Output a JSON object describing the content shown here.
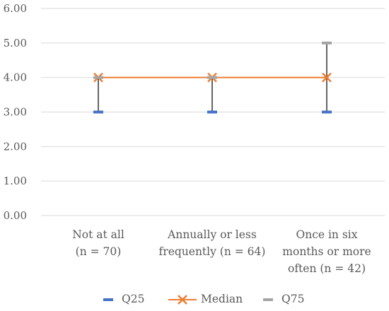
{
  "chart_data": {
    "type": "line",
    "title": "",
    "xlabel": "",
    "ylabel": "",
    "ylim": [
      0,
      6
    ],
    "yticks": [
      "0.00",
      "1.00",
      "2.00",
      "3.00",
      "4.00",
      "5.00",
      "6.00"
    ],
    "grid": true,
    "legend_position": "bottom",
    "categories": [
      [
        "Not at all",
        "(n = 70)"
      ],
      [
        "Annually or less",
        "frequently (n = 64)"
      ],
      [
        "Once in six",
        "months or more",
        "often (n = 42)"
      ]
    ],
    "series": [
      {
        "name": "Q25",
        "values": [
          3,
          3,
          3
        ],
        "marker": "dash",
        "line": false
      },
      {
        "name": "Median",
        "values": [
          4,
          4,
          4
        ],
        "marker": "x",
        "line": true
      },
      {
        "name": "Q75",
        "values": [
          4,
          4,
          5
        ],
        "marker": "dash",
        "line": false
      }
    ],
    "colors": {
      "Q25": "#4472C4",
      "Median": "#ED7D31",
      "Q75": "#A5A5A5",
      "range": "#000000",
      "grid": "#D9D9D9",
      "text": "#595959"
    }
  }
}
